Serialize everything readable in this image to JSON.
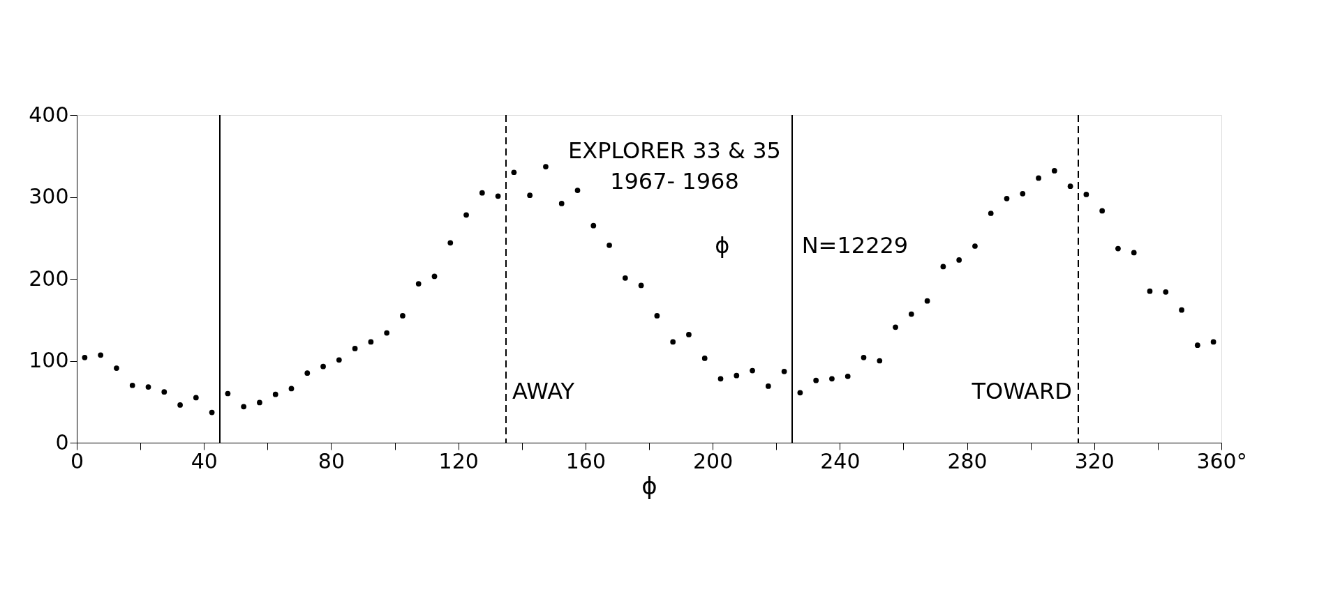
{
  "chart_data": {
    "type": "scatter",
    "x": [
      2.5,
      7.5,
      12.5,
      17.5,
      22.5,
      27.5,
      32.5,
      37.5,
      42.5,
      47.5,
      52.5,
      57.5,
      62.5,
      67.5,
      72.5,
      77.5,
      82.5,
      87.5,
      92.5,
      97.5,
      102.5,
      107.5,
      112.5,
      117.5,
      122.5,
      127.5,
      132.5,
      137.5,
      142.5,
      147.5,
      152.5,
      157.5,
      162.5,
      167.5,
      172.5,
      177.5,
      182.5,
      187.5,
      192.5,
      197.5,
      202.5,
      207.5,
      212.5,
      217.5,
      222.5,
      227.5,
      232.5,
      237.5,
      242.5,
      247.5,
      252.5,
      257.5,
      262.5,
      267.5,
      272.5,
      277.5,
      282.5,
      287.5,
      292.5,
      297.5,
      302.5,
      307.5,
      312.5,
      317.5,
      322.5,
      327.5,
      332.5,
      337.5,
      342.5,
      347.5,
      352.5,
      357.5
    ],
    "series": [
      {
        "color": "#000000",
        "values": [
          104,
          107,
          91,
          70,
          68,
          62,
          46,
          55,
          37,
          60,
          44,
          49,
          59,
          66,
          85,
          93,
          101,
          115,
          123,
          134,
          155,
          194,
          203,
          244,
          278,
          305,
          301,
          330,
          302,
          337,
          292,
          308,
          265,
          241,
          201,
          192,
          155,
          123,
          132,
          103,
          78,
          82,
          88,
          69,
          87,
          61,
          76,
          78,
          81,
          104,
          100,
          141,
          157,
          173,
          215,
          223,
          240,
          280,
          298,
          304,
          323,
          332,
          313,
          303,
          283,
          237,
          232,
          185,
          184,
          162,
          119,
          123
        ]
      }
    ],
    "marker": "circle",
    "xlabel": "ϕ",
    "xlim": [
      0,
      360
    ],
    "xticks": [
      0,
      {
        "value": 20,
        "label": null
      },
      40,
      {
        "value": 60,
        "label": null
      },
      80,
      {
        "value": 100,
        "label": null
      },
      120,
      {
        "value": 140,
        "label": null
      },
      160,
      {
        "value": 180,
        "label": null
      },
      200,
      {
        "value": 220,
        "label": null
      },
      240,
      {
        "value": 260,
        "label": null
      },
      280,
      {
        "value": 300,
        "label": null
      },
      320,
      {
        "value": 340,
        "label": null
      },
      {
        "value": 360,
        "label": "360°"
      }
    ],
    "ylim": [
      0,
      400
    ],
    "yticks": [
      0,
      100,
      200,
      300,
      400
    ],
    "grid": false,
    "ref_lines": [
      {
        "axis": "x",
        "value": 45,
        "line_style": "solid",
        "color": "#000000"
      },
      {
        "axis": "x",
        "value": 135,
        "line_style": "dashed",
        "color": "#000000"
      },
      {
        "axis": "x",
        "value": 225,
        "line_style": "solid",
        "color": "#000000"
      },
      {
        "axis": "x",
        "value": 315,
        "line_style": "dashed",
        "color": "#000000"
      }
    ],
    "annotations": [
      "EXPLORER 33 & 35",
      "1967- 1968",
      "ϕ",
      "N=12229",
      "AWAY",
      "TOWARD"
    ]
  }
}
